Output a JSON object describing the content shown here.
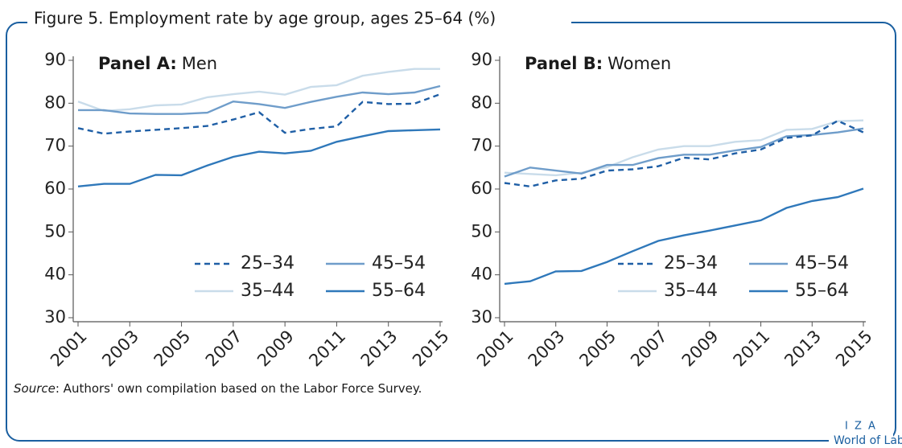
{
  "figure_title": "Figure 5. Employment rate by age group, ages 25–64 (%)",
  "source": {
    "label": "Source",
    "text": ": Authors' own compilation based on the Labor Force Survey."
  },
  "logo": {
    "top": "I Z A",
    "bottom": "World of Labor"
  },
  "chart_data": [
    {
      "type": "line",
      "panel_label": "Panel A:",
      "title": "Men",
      "x": [
        2001,
        2002,
        2003,
        2004,
        2005,
        2006,
        2007,
        2008,
        2009,
        2010,
        2011,
        2012,
        2013,
        2014,
        2015
      ],
      "xlim": [
        2001,
        2015
      ],
      "xticks": [
        2001,
        2003,
        2005,
        2007,
        2009,
        2011,
        2013,
        2015
      ],
      "ylim": [
        30,
        90
      ],
      "yticks": [
        30,
        40,
        50,
        60,
        70,
        80,
        90
      ],
      "legend": "lower right",
      "series": [
        {
          "name": "25–34",
          "color": "#1f5fa6",
          "line_style": "dashed",
          "values": [
            74.2,
            72.9,
            73.4,
            73.8,
            74.2,
            74.7,
            76.2,
            77.9,
            73.1,
            74.0,
            74.6,
            80.3,
            79.8,
            79.9,
            82.1
          ]
        },
        {
          "name": "35–44",
          "color": "#c9dcea",
          "line_style": "solid",
          "values": [
            80.4,
            78.2,
            78.6,
            79.5,
            79.7,
            81.4,
            82.1,
            82.7,
            82.0,
            83.8,
            84.2,
            86.4,
            87.3,
            88.0,
            88.0
          ]
        },
        {
          "name": "45–54",
          "color": "#6f9dca",
          "line_style": "solid",
          "values": [
            78.4,
            78.4,
            77.6,
            77.5,
            77.5,
            77.8,
            80.4,
            79.8,
            78.9,
            80.3,
            81.5,
            82.5,
            82.1,
            82.5,
            84.0
          ]
        },
        {
          "name": "55–64",
          "color": "#2f78ba",
          "line_style": "solid",
          "values": [
            60.6,
            61.2,
            61.2,
            63.3,
            63.2,
            65.5,
            67.5,
            68.7,
            68.3,
            68.9,
            71.0,
            72.3,
            73.5,
            73.7,
            73.9
          ]
        }
      ]
    },
    {
      "type": "line",
      "panel_label": "Panel B:",
      "title": "Women",
      "x": [
        2001,
        2002,
        2003,
        2004,
        2005,
        2006,
        2007,
        2008,
        2009,
        2010,
        2011,
        2012,
        2013,
        2014,
        2015
      ],
      "xlim": [
        2001,
        2015
      ],
      "xticks": [
        2001,
        2003,
        2005,
        2007,
        2009,
        2011,
        2013,
        2015
      ],
      "ylim": [
        30,
        90
      ],
      "yticks": [
        30,
        40,
        50,
        60,
        70,
        80,
        90
      ],
      "legend": "lower right",
      "series": [
        {
          "name": "25–34",
          "color": "#1f5fa6",
          "line_style": "dashed",
          "values": [
            61.4,
            60.6,
            62.0,
            62.4,
            64.3,
            64.6,
            65.3,
            67.3,
            66.9,
            68.3,
            69.2,
            71.9,
            72.5,
            75.9,
            73.2
          ]
        },
        {
          "name": "35–44",
          "color": "#c9dcea",
          "line_style": "solid",
          "values": [
            63.8,
            63.5,
            63.2,
            63.8,
            65.1,
            67.4,
            69.2,
            70.0,
            70.0,
            71.0,
            71.4,
            73.8,
            74.0,
            75.8,
            76.0
          ]
        },
        {
          "name": "45–54",
          "color": "#6f9dca",
          "line_style": "solid",
          "values": [
            62.9,
            65.0,
            64.3,
            63.6,
            65.6,
            65.6,
            67.2,
            68.0,
            68.0,
            69.0,
            69.8,
            72.3,
            72.6,
            73.2,
            74.1
          ]
        },
        {
          "name": "55–64",
          "color": "#2f78ba",
          "line_style": "solid",
          "values": [
            37.9,
            38.5,
            40.8,
            40.9,
            43.0,
            45.5,
            47.9,
            49.2,
            50.3,
            51.5,
            52.7,
            55.6,
            57.2,
            58.1,
            60.1
          ]
        }
      ]
    }
  ]
}
